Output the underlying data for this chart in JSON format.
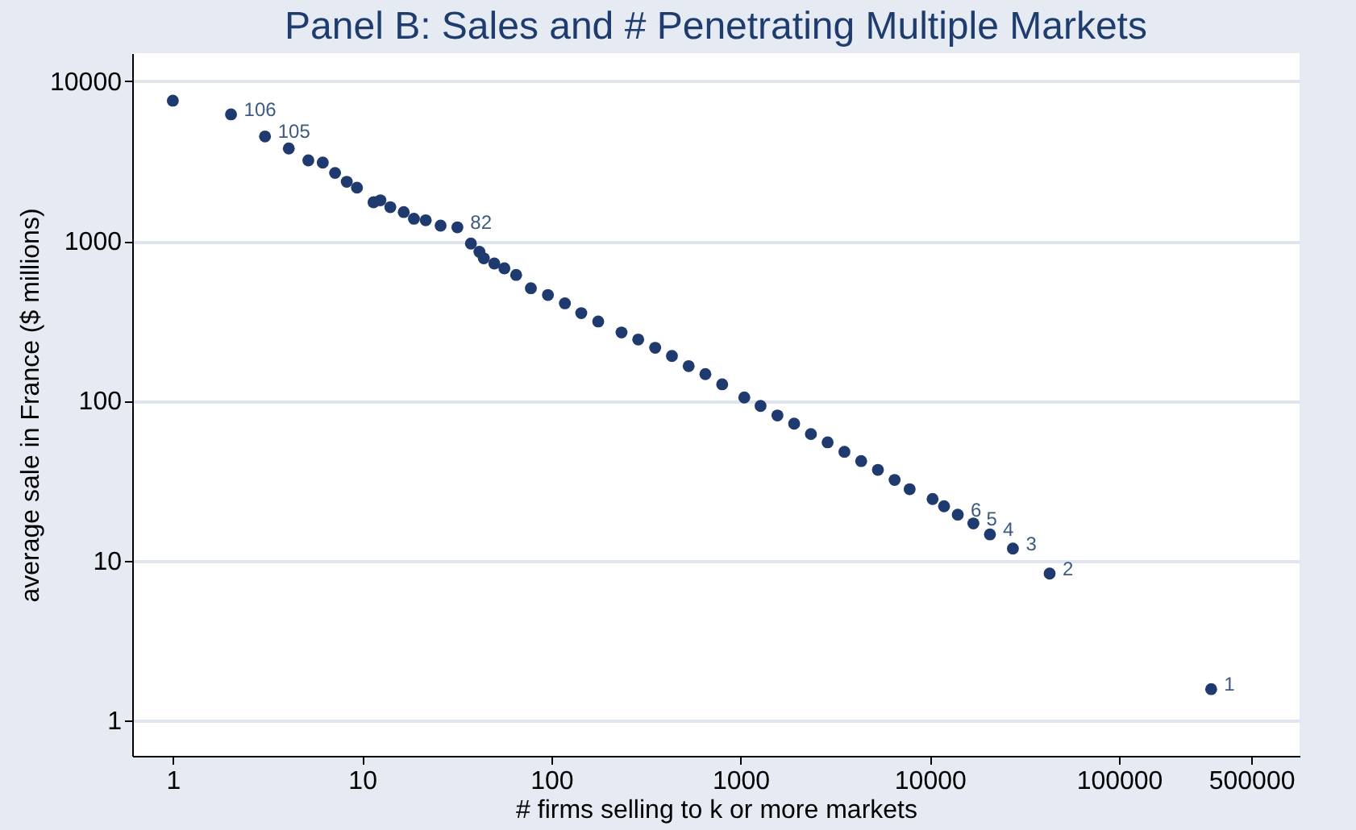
{
  "chart_data": {
    "type": "scatter",
    "title": "Panel B: Sales and # Penetrating Multiple Markets",
    "xlabel": "# firms selling to k or more markets",
    "ylabel": "average sale in France ($ millions)",
    "log": "xy",
    "grid": "y",
    "marker": "circle",
    "xlim": [
      0.61,
      900000
    ],
    "ylim": [
      0.6,
      15000
    ],
    "xticks": [
      1,
      10,
      100,
      1000,
      10000,
      100000,
      500000
    ],
    "yticks": [
      1,
      10,
      100,
      1000,
      10000
    ],
    "series": [
      {
        "color": "#1f3a6e",
        "x": [
          1,
          2.03,
          3.07,
          4.1,
          5.2,
          6.2,
          7.2,
          8.3,
          9.4,
          11.5,
          12.5,
          14.1,
          16.6,
          18.8,
          21.7,
          26,
          31.9,
          37.6,
          41.7,
          44,
          50,
          56.5,
          65.2,
          78,
          96,
          118,
          144,
          177,
          235,
          288,
          354,
          434,
          532,
          652,
          800,
          1047,
          1276,
          1567,
          1920,
          2355,
          2885,
          3540,
          4340,
          5320,
          6520,
          7830,
          10350,
          11900,
          14060,
          17000,
          20800,
          27500,
          43000,
          307000
        ],
        "values": [
          7570,
          6210,
          4520,
          3800,
          3200,
          3100,
          2670,
          2350,
          2160,
          1750,
          1800,
          1630,
          1520,
          1380,
          1350,
          1250,
          1220,
          965,
          857,
          780,
          724,
          675,
          614,
          507,
          460,
          408,
          354,
          314,
          268,
          242,
          215,
          191,
          165,
          147,
          127,
          105,
          93,
          81,
          72,
          62,
          55,
          48,
          42,
          37,
          32,
          28,
          24.3,
          21.9,
          19.4,
          17.1,
          14.6,
          11.9,
          8.3,
          1.57
        ]
      }
    ],
    "annotations": [
      {
        "text": "106",
        "x": 2.03,
        "y": 6210
      },
      {
        "text": "105",
        "x": 3.07,
        "y": 4520
      },
      {
        "text": "82",
        "x": 31.9,
        "y": 1220
      },
      {
        "text": "6",
        "x": 14060,
        "y": 19.4
      },
      {
        "text": "5",
        "x": 17000,
        "y": 17.1
      },
      {
        "text": "4",
        "x": 20800,
        "y": 14.6
      },
      {
        "text": "3",
        "x": 27500,
        "y": 11.9
      },
      {
        "text": "2",
        "x": 43000,
        "y": 8.3
      },
      {
        "text": "1",
        "x": 307000,
        "y": 1.57
      }
    ]
  }
}
